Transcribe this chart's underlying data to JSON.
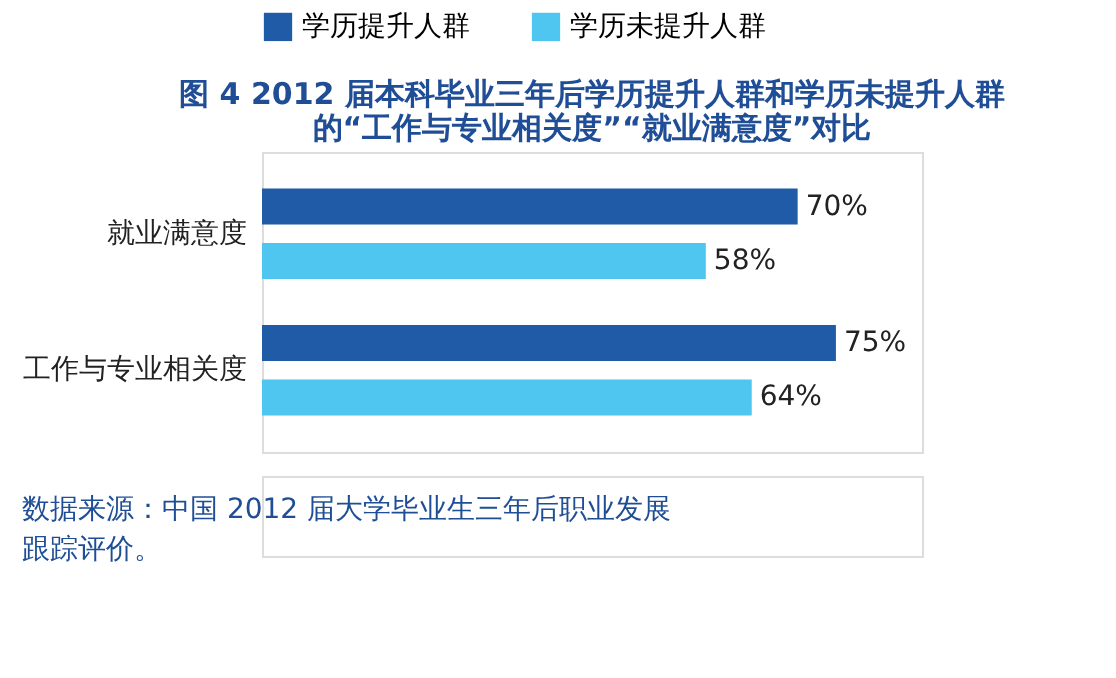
{
  "chart_data": {
    "type": "bar",
    "orientation": "horizontal",
    "title": [
      "图 4  2012 届本科毕业三年后学历提升人群和学历未提升人群",
      "的“工作与专业相关度”“就业满意度”对比"
    ],
    "categories": [
      "就业满意度",
      "工作与专业相关度"
    ],
    "series": [
      {
        "name": "学历提升人群",
        "color": "#1f5ba6",
        "values": [
          70,
          75
        ],
        "value_labels": [
          "70%",
          "75%"
        ]
      },
      {
        "name": "学历未提升人群",
        "color": "#4fc6f0",
        "values": [
          58,
          64
        ],
        "value_labels": [
          "58%",
          "64%"
        ]
      }
    ],
    "legend": "top",
    "annotations": [
      "数据来源：中国 2012 届大学毕业生三年后职业发展",
      "跟踪评价。"
    ]
  }
}
